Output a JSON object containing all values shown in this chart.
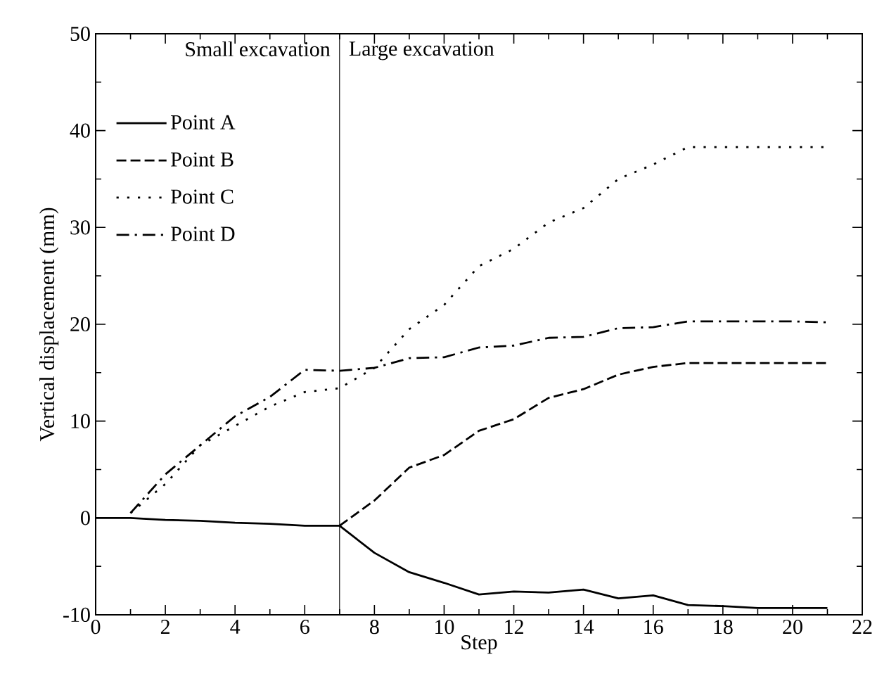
{
  "chart_data": {
    "type": "line",
    "xlabel": "Step",
    "ylabel": "Vertical displacement (mm)",
    "xlim": [
      0,
      22
    ],
    "xticks": [
      0,
      2,
      4,
      6,
      8,
      10,
      12,
      14,
      16,
      18,
      20,
      22
    ],
    "ylim": [
      -10,
      50
    ],
    "yticks": [
      -10,
      0,
      10,
      20,
      30,
      40,
      50
    ],
    "legend": "top left",
    "marker": "none",
    "grid": false,
    "ref_lines": [
      {
        "axis": "x",
        "value": 7,
        "color": "#000000"
      }
    ],
    "annotations": [
      "Small excavation",
      "Large excavation"
    ],
    "series": [
      {
        "name": "Point A",
        "color": "#000000",
        "line_style": "solid",
        "x": [
          0,
          1,
          2,
          3,
          4,
          5,
          6,
          7,
          8,
          9,
          10,
          11,
          12,
          13,
          14,
          15,
          16,
          17,
          18,
          19,
          20,
          21
        ],
        "values": [
          0,
          0,
          -0.2,
          -0.3,
          -0.5,
          -0.6,
          -0.8,
          -0.8,
          -3.6,
          -5.6,
          -6.7,
          -7.9,
          -7.6,
          -7.7,
          -7.4,
          -8.3,
          -8.0,
          -9.0,
          -9.1,
          -9.3,
          -9.3,
          -9.3
        ]
      },
      {
        "name": "Point B",
        "color": "#000000",
        "line_style": "dashed",
        "x": [
          7,
          8,
          9,
          10,
          11,
          12,
          13,
          14,
          15,
          16,
          17,
          18,
          19,
          20,
          21
        ],
        "values": [
          -0.8,
          1.8,
          5.2,
          6.5,
          9.0,
          10.2,
          12.4,
          13.3,
          14.8,
          15.6,
          16.0,
          16.0,
          16.0,
          16.0,
          16.0
        ]
      },
      {
        "name": "Point C",
        "color": "#000000",
        "line_style": "dotted",
        "x": [
          1,
          2,
          3,
          4,
          5,
          6,
          7,
          8,
          9,
          10,
          11,
          12,
          13,
          14,
          15,
          16,
          17,
          18,
          19,
          20,
          21
        ],
        "values": [
          0.5,
          3.5,
          7.5,
          9.5,
          11.5,
          13.0,
          13.4,
          15.5,
          19.5,
          22.0,
          26.0,
          27.8,
          30.5,
          32.0,
          35.0,
          36.5,
          38.3,
          38.3,
          38.3,
          38.3,
          38.3
        ]
      },
      {
        "name": "Point D",
        "color": "#000000",
        "line_style": "dashdotted",
        "x": [
          1,
          2,
          3,
          4,
          5,
          6,
          7,
          8,
          9,
          10,
          11,
          12,
          13,
          14,
          15,
          16,
          17,
          18,
          19,
          20,
          21
        ],
        "values": [
          0.5,
          4.5,
          7.5,
          10.5,
          12.5,
          15.3,
          15.2,
          15.5,
          16.5,
          16.6,
          17.6,
          17.8,
          18.6,
          18.7,
          19.6,
          19.7,
          20.3,
          20.3,
          20.3,
          20.3,
          20.2
        ]
      }
    ]
  }
}
